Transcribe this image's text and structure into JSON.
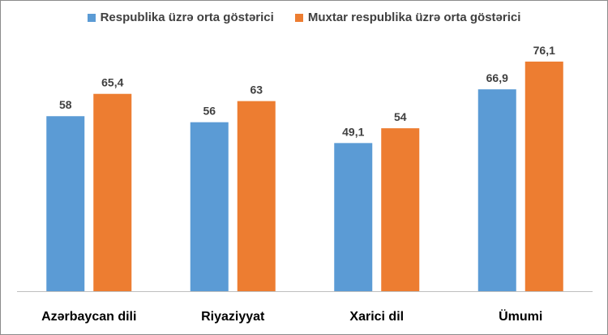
{
  "chart_data": {
    "type": "bar",
    "categories": [
      "Azərbaycan dili",
      "Riyaziyyat",
      "Xarici dil",
      "Ümumi"
    ],
    "series": [
      {
        "name": "Respublika üzrə orta göstərici",
        "color": "#5b9bd5",
        "values": [
          58,
          56,
          49.1,
          66.9
        ],
        "labels": [
          "58",
          "56",
          "49,1",
          "66,9"
        ]
      },
      {
        "name": "Muxtar respublika üzrə orta göstərici",
        "color": "#ed7d31",
        "values": [
          65.4,
          63,
          54,
          76.1
        ],
        "labels": [
          "65,4",
          "63",
          "54",
          "76,1"
        ]
      }
    ],
    "ylim": [
      0,
      80
    ],
    "grid": false,
    "legend_position": "top"
  }
}
